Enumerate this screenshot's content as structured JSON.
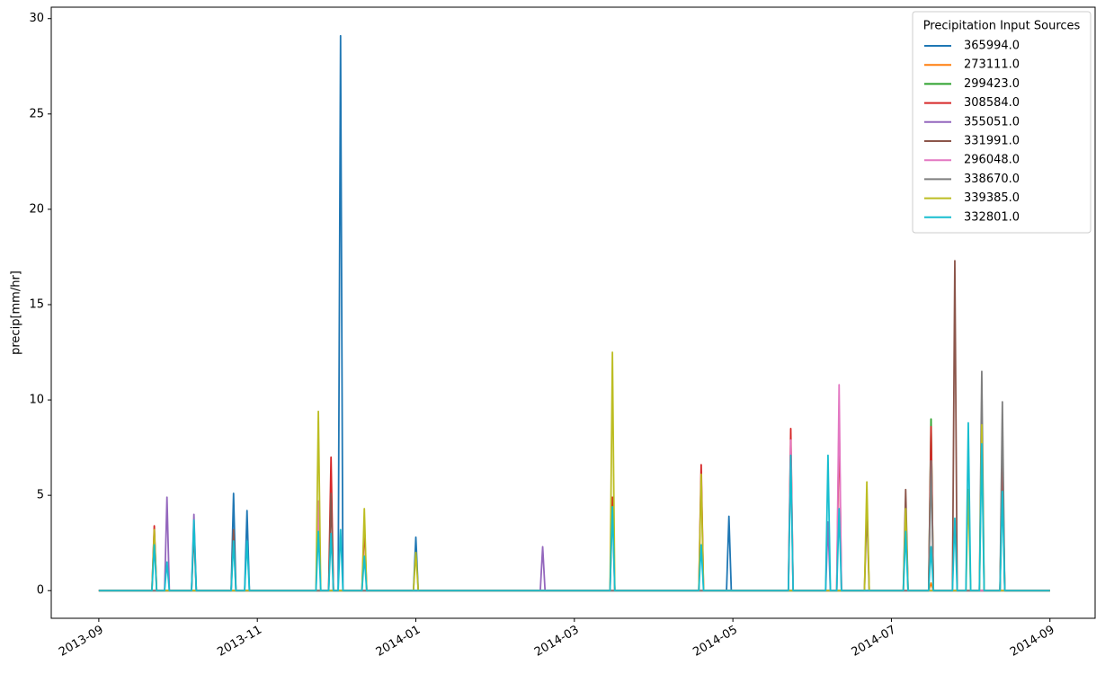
{
  "chart_data": {
    "type": "line",
    "ylabel": "precip[mm/hr]",
    "legend_title": "Precipitation Input Sources",
    "legend": "upper right",
    "xlim": [
      -0.6,
      12.57
    ],
    "ylim": [
      -1.45,
      30.6
    ],
    "xticks": [
      {
        "value": 0,
        "label": "2013-09"
      },
      {
        "value": 2,
        "label": "2013-11"
      },
      {
        "value": 4,
        "label": "2014-01"
      },
      {
        "value": 6,
        "label": "2014-03"
      },
      {
        "value": 8,
        "label": "2014-05"
      },
      {
        "value": 10,
        "label": "2014-07"
      },
      {
        "value": 12,
        "label": "2014-09"
      }
    ],
    "yticks": [
      0,
      5,
      10,
      15,
      20,
      25,
      30
    ],
    "series": [
      {
        "name": "365994.0",
        "color": "#1f77b4",
        "x": [
          0,
          1.67,
          1.7,
          1.73,
          1.84,
          1.87,
          1.9,
          3.02,
          3.05,
          3.08,
          3.97,
          4.0,
          4.03,
          7.92,
          7.95,
          7.98,
          12
        ],
        "values": [
          0,
          0,
          5.1,
          0,
          0,
          4.2,
          0,
          0,
          29.1,
          0,
          0,
          2.8,
          0,
          0,
          3.9,
          0,
          0
        ]
      },
      {
        "name": "273111.0",
        "color": "#ff7f0e",
        "x": [
          0,
          10.47,
          10.5,
          10.53,
          12
        ],
        "values": [
          0,
          0,
          0.4,
          0,
          0
        ]
      },
      {
        "name": "299423.0",
        "color": "#2ca02c",
        "x": [
          0,
          10.47,
          10.5,
          10.53,
          11.37,
          11.4,
          11.43,
          12
        ],
        "values": [
          0,
          0,
          9.0,
          0,
          0,
          7.1,
          0,
          0
        ]
      },
      {
        "name": "308584.0",
        "color": "#d62728",
        "x": [
          0,
          0.67,
          0.7,
          0.73,
          2.9,
          2.93,
          2.96,
          3.32,
          3.35,
          3.38,
          6.45,
          6.48,
          6.51,
          7.57,
          7.6,
          7.63,
          8.7,
          8.73,
          8.76,
          9.31,
          9.34,
          9.37,
          10.47,
          10.5,
          10.53,
          11.37,
          11.4,
          11.43,
          12
        ],
        "values": [
          0,
          0,
          3.4,
          0,
          0,
          7.0,
          0,
          0,
          3.5,
          0,
          0,
          4.9,
          0,
          0,
          6.6,
          0,
          0,
          8.5,
          0,
          0,
          9.1,
          0,
          0,
          8.6,
          0,
          0,
          6.9,
          0,
          0
        ]
      },
      {
        "name": "355051.0",
        "color": "#9467bd",
        "x": [
          0,
          0.83,
          0.86,
          0.89,
          1.17,
          1.2,
          1.23,
          5.57,
          5.6,
          5.63,
          9.17,
          9.2,
          9.23,
          12
        ],
        "values": [
          0,
          0,
          4.9,
          0,
          0,
          4.0,
          0,
          0,
          2.3,
          0,
          0,
          3.6,
          0,
          0
        ]
      },
      {
        "name": "331991.0",
        "color": "#8c564b",
        "x": [
          0,
          1.17,
          1.2,
          1.23,
          1.67,
          1.7,
          1.73,
          2.9,
          2.93,
          2.96,
          9.66,
          9.69,
          9.72,
          10.15,
          10.18,
          10.21,
          10.77,
          10.8,
          10.83,
          12
        ],
        "values": [
          0,
          0,
          3.1,
          0,
          0,
          3.2,
          0,
          0,
          5.1,
          0,
          0,
          4.4,
          0,
          0,
          5.3,
          0,
          0,
          17.3,
          0,
          0
        ]
      },
      {
        "name": "296048.0",
        "color": "#e377c2",
        "x": [
          0,
          2.74,
          2.77,
          2.8,
          8.7,
          8.73,
          8.76,
          9.31,
          9.34,
          9.37,
          12
        ],
        "values": [
          0,
          0,
          4.7,
          0,
          0,
          7.9,
          0,
          0,
          10.8,
          0,
          0
        ]
      },
      {
        "name": "338670.0",
        "color": "#7f7f7f",
        "x": [
          0,
          10.47,
          10.5,
          10.53,
          11.11,
          11.14,
          11.17,
          11.37,
          11.4,
          11.43,
          12
        ],
        "values": [
          0,
          0,
          6.8,
          0,
          0,
          11.5,
          0,
          0,
          9.9,
          0,
          0
        ]
      },
      {
        "name": "339385.0",
        "color": "#bcbd22",
        "x": [
          0,
          0.67,
          0.7,
          0.73,
          2.74,
          2.77,
          2.8,
          3.32,
          3.35,
          3.38,
          3.97,
          4.0,
          4.03,
          6.45,
          6.48,
          6.51,
          7.57,
          7.6,
          7.63,
          9.66,
          9.69,
          9.72,
          10.15,
          10.18,
          10.21,
          10.94,
          10.97,
          11.0,
          11.11,
          11.14,
          11.17,
          12
        ],
        "values": [
          0,
          0,
          3.2,
          0,
          0,
          9.4,
          0,
          0,
          4.3,
          0,
          0,
          2.0,
          0,
          0,
          12.5,
          0,
          0,
          6.1,
          0,
          0,
          5.7,
          0,
          0,
          4.3,
          0,
          0,
          5.3,
          0,
          0,
          8.7,
          0,
          0
        ]
      },
      {
        "name": "332801.0",
        "color": "#17becf",
        "x": [
          0,
          0.67,
          0.7,
          0.73,
          0.83,
          0.86,
          0.89,
          1.17,
          1.2,
          1.23,
          1.67,
          1.7,
          1.73,
          1.84,
          1.87,
          1.9,
          2.74,
          2.77,
          2.8,
          2.9,
          2.93,
          2.96,
          3.02,
          3.05,
          3.08,
          3.32,
          3.35,
          3.38,
          6.45,
          6.48,
          6.51,
          7.57,
          7.6,
          7.63,
          8.7,
          8.73,
          8.76,
          9.17,
          9.2,
          9.23,
          9.31,
          9.34,
          9.37,
          10.15,
          10.18,
          10.21,
          10.47,
          10.5,
          10.53,
          10.77,
          10.8,
          10.83,
          10.94,
          10.97,
          11.0,
          11.11,
          11.14,
          11.17,
          11.37,
          11.4,
          11.43,
          12
        ],
        "values": [
          0,
          0,
          2.4,
          0,
          0,
          1.5,
          0,
          0,
          3.7,
          0,
          0,
          2.6,
          0,
          0,
          2.6,
          0,
          0,
          3.1,
          0,
          0,
          3.0,
          0,
          0,
          3.2,
          0,
          0,
          1.8,
          0,
          0,
          4.4,
          0,
          0,
          2.4,
          0,
          0,
          7.1,
          0,
          0,
          7.1,
          0,
          0,
          4.3,
          0,
          0,
          3.1,
          0,
          0,
          2.3,
          0,
          0,
          3.8,
          0,
          0,
          8.8,
          0,
          0,
          7.7,
          0,
          0,
          5.2,
          0,
          0
        ]
      }
    ]
  }
}
